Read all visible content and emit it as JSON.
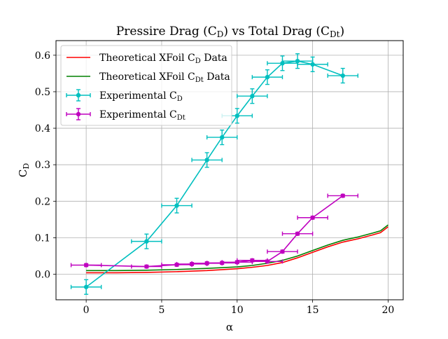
{
  "chart_data": {
    "type": "line",
    "title_main": "Pressire Drag (C",
    "title_sub1": "D",
    "title_mid": ") vs Total Drag (C",
    "title_sub2": "Dt",
    "title_end": ")",
    "xlabel": "α",
    "ylabel_main": "C",
    "ylabel_sub": "D",
    "xlim": [
      -2,
      21
    ],
    "ylim": [
      -0.07,
      0.64
    ],
    "xticks": [
      0,
      5,
      10,
      15,
      20
    ],
    "xtick_labels": [
      "0",
      "5",
      "10",
      "15",
      "20"
    ],
    "yticks": [
      0.0,
      0.1,
      0.2,
      0.3,
      0.4,
      0.5,
      0.6
    ],
    "ytick_labels": [
      "0.0",
      "0.1",
      "0.2",
      "0.3",
      "0.4",
      "0.5",
      "0.6"
    ],
    "grid": true,
    "legend_position": "upper-left",
    "series": [
      {
        "name": "Theoretical XFoil C",
        "name_sub": "D",
        "name_suffix": " Data",
        "kind": "line",
        "color": "#ff0000",
        "x": [
          0,
          2,
          4,
          6,
          8,
          10,
          11,
          12,
          13,
          14,
          15,
          16,
          17,
          18,
          19,
          19.5,
          20
        ],
        "y": [
          0.004,
          0.004,
          0.005,
          0.007,
          0.01,
          0.015,
          0.019,
          0.024,
          0.032,
          0.045,
          0.06,
          0.075,
          0.088,
          0.097,
          0.108,
          0.114,
          0.13
        ]
      },
      {
        "name": "Theoretical XFoil C",
        "name_sub": "Dt",
        "name_suffix": " Data",
        "kind": "line",
        "color": "#008000",
        "x": [
          0,
          2,
          4,
          6,
          8,
          10,
          11,
          12,
          13,
          14,
          15,
          16,
          17,
          18,
          19,
          19.5,
          20
        ],
        "y": [
          0.01,
          0.01,
          0.011,
          0.013,
          0.016,
          0.02,
          0.024,
          0.03,
          0.038,
          0.05,
          0.065,
          0.08,
          0.093,
          0.102,
          0.113,
          0.119,
          0.135
        ]
      },
      {
        "name": "Experimental C",
        "name_sub": "D",
        "name_suffix": "",
        "kind": "errorbar",
        "color": "#00bfbf",
        "x": [
          0,
          4,
          6,
          8,
          9,
          10,
          11,
          12,
          13,
          14,
          15,
          17
        ],
        "y": [
          -0.035,
          0.09,
          0.188,
          0.313,
          0.375,
          0.434,
          0.488,
          0.54,
          0.578,
          0.584,
          0.575,
          0.544
        ],
        "xerr": 1,
        "yerr": 0.02
      },
      {
        "name": "Experimental C",
        "name_sub": "Dt",
        "name_suffix": "",
        "kind": "errorbar",
        "color": "#bf00bf",
        "x": [
          0,
          4,
          6,
          7,
          8,
          9,
          10,
          11,
          12,
          13,
          14,
          15,
          17
        ],
        "y": [
          0.025,
          0.021,
          0.026,
          0.028,
          0.03,
          0.031,
          0.033,
          0.038,
          0.035,
          0.062,
          0.111,
          0.155,
          0.215
        ],
        "xerr": 1,
        "yerr": 0.004
      }
    ]
  }
}
